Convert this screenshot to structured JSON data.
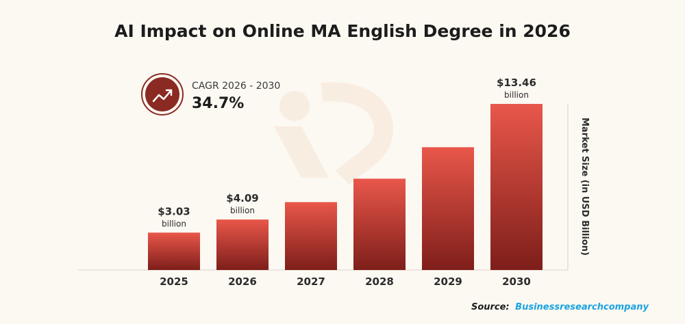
{
  "chart_data": {
    "type": "bar",
    "title": "AI Impact on Online MA English Degree in 2026",
    "categories": [
      "2025",
      "2026",
      "2027",
      "2028",
      "2029",
      "2030"
    ],
    "values": [
      3.03,
      4.09,
      5.5,
      7.4,
      9.95,
      13.46
    ],
    "data_labels": [
      {
        "index": 0,
        "value": "$3.03",
        "unit": "billion"
      },
      {
        "index": 1,
        "value": "$4.09",
        "unit": "billion"
      },
      {
        "index": 5,
        "value": "$13.46",
        "unit": "billion"
      }
    ],
    "ylabel": "Market Size (in USD Billion)",
    "xlabel": "",
    "ylim": [
      0,
      13.46
    ],
    "grid": false,
    "bar_color_top": "#e9574a",
    "bar_color_bottom": "#7e1e1a"
  },
  "cagr": {
    "label": "CAGR 2026 - 2030",
    "value": "34.7%",
    "icon": "trend-up-icon",
    "badge_color": "#8b2a22"
  },
  "source": {
    "prefix": "Source:",
    "name": "Businessresearchcompany",
    "name_color": "#1aa3e0"
  }
}
